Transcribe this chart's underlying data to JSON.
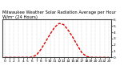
{
  "title": "Milwaukee Weather Solar Radiation Average per Hour W/m² (24 Hours)",
  "hours": [
    0,
    1,
    2,
    3,
    4,
    5,
    6,
    7,
    8,
    9,
    10,
    11,
    12,
    13,
    14,
    15,
    16,
    17,
    18,
    19,
    20,
    21,
    22,
    23
  ],
  "values": [
    0,
    0,
    0,
    0,
    0,
    0,
    5,
    40,
    130,
    250,
    370,
    480,
    540,
    520,
    430,
    320,
    190,
    75,
    15,
    2,
    0,
    0,
    0,
    0
  ],
  "line_color": "#dd0000",
  "bg_color": "#ffffff",
  "grid_color": "#999999",
  "title_color": "#000000",
  "border_color": "#444444",
  "ylim": [
    0,
    600
  ],
  "yticks": [
    0,
    100,
    200,
    300,
    400,
    500,
    600
  ],
  "ytick_labels": [
    "0",
    "1",
    "2",
    "3",
    "4",
    "5",
    "6"
  ],
  "title_fontsize": 3.8,
  "tick_fontsize": 3.2,
  "linewidth": 1.0
}
